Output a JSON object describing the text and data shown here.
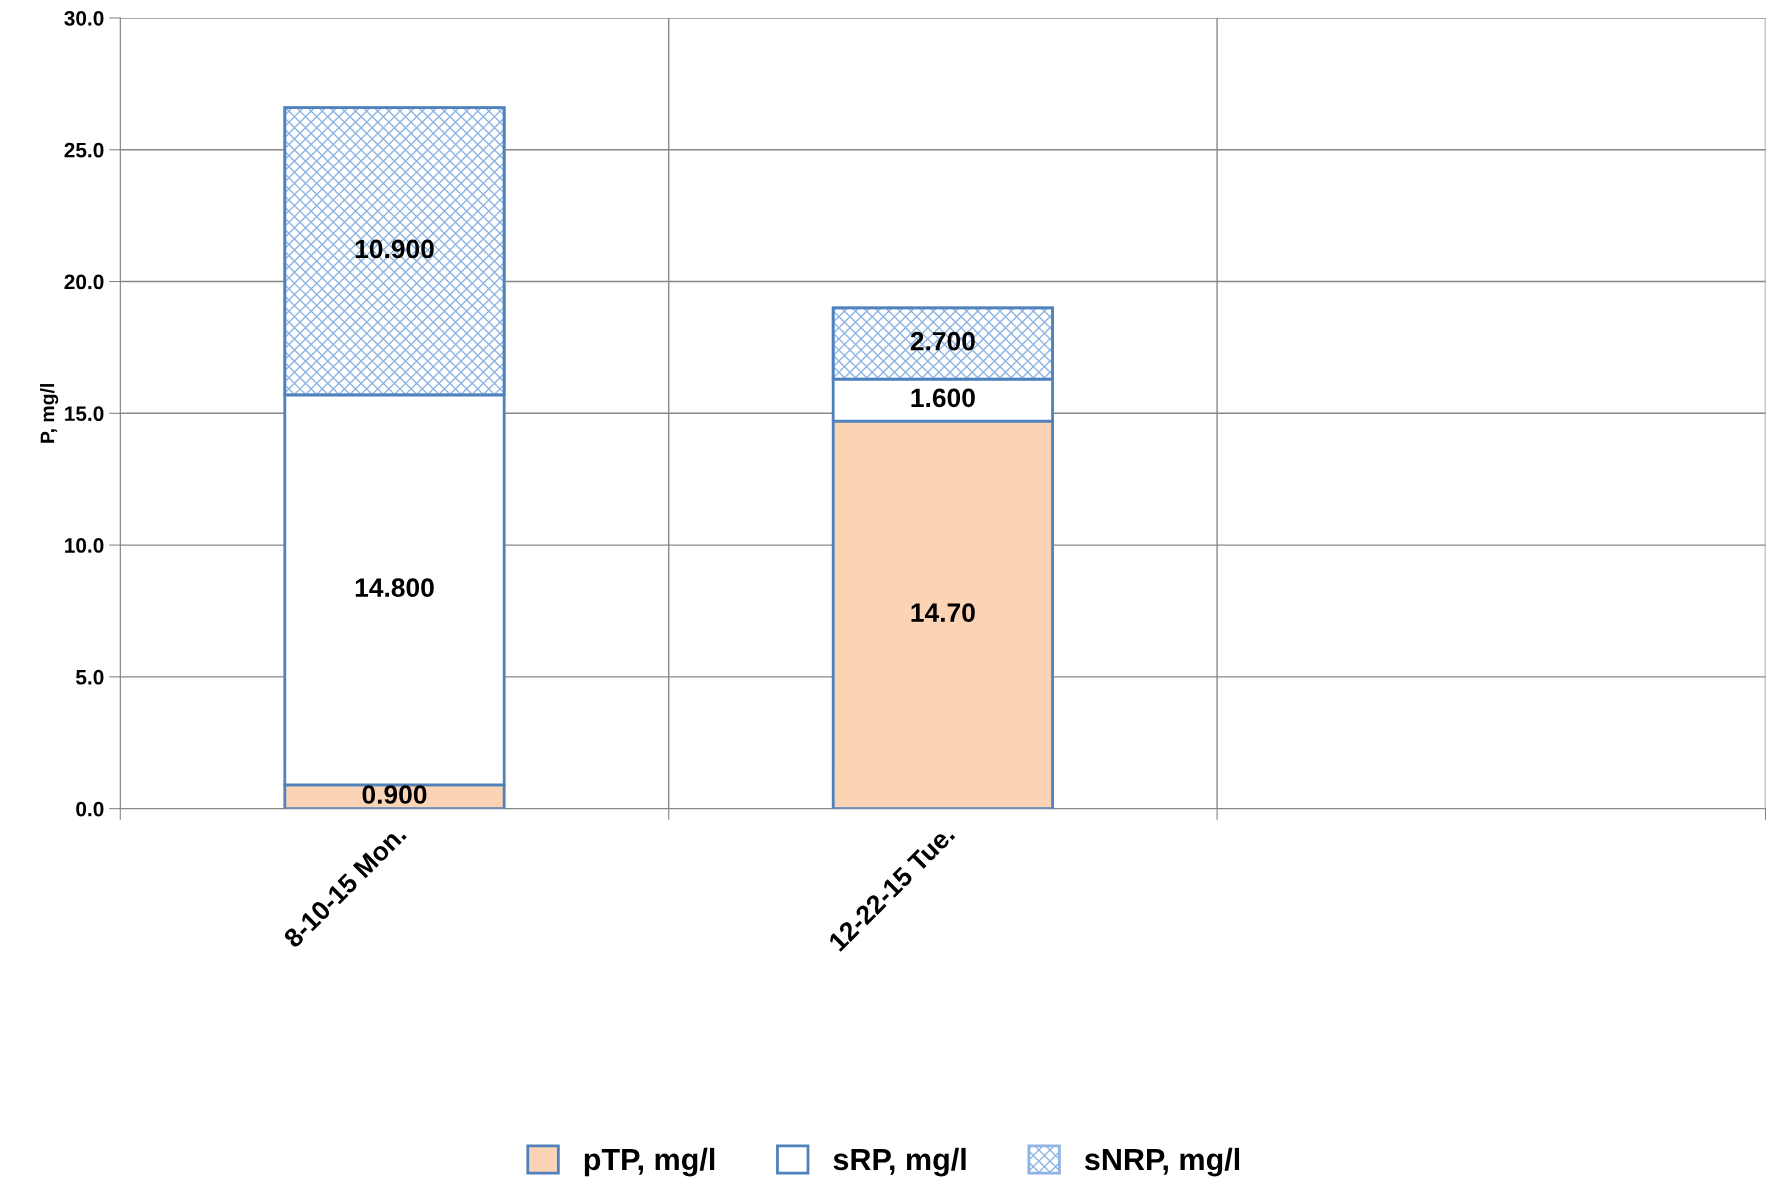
{
  "chart_data": {
    "type": "bar",
    "stacked": true,
    "ylabel": "P, mg/l",
    "categories": [
      "8-10-15 Mon.",
      "12-22-15 Tue.",
      null
    ],
    "series": [
      {
        "name": "pTP, mg/l",
        "color": "#fad4b4",
        "values": [
          0.9,
          14.7,
          null
        ],
        "value_labels": [
          "0.900",
          "14.70",
          null
        ]
      },
      {
        "name": "sRP, mg/l",
        "color": "#ffffff",
        "values": [
          14.8,
          1.6,
          null
        ],
        "value_labels": [
          "14.800",
          "1.600",
          null
        ]
      },
      {
        "name": "sNRP, mg/l",
        "color": "#8db4e2",
        "values": [
          10.9,
          2.7,
          null
        ],
        "value_labels": [
          "10.900",
          "2.700",
          null
        ]
      }
    ],
    "ylim": [
      0,
      30
    ],
    "yticks": [
      {
        "value": 0,
        "label": "0.0"
      },
      {
        "value": 5,
        "label": "5.0"
      },
      {
        "value": 10,
        "label": "10.0"
      },
      {
        "value": 15,
        "label": "15.0"
      },
      {
        "value": 20,
        "label": "20.0"
      },
      {
        "value": 25,
        "label": "25.0"
      },
      {
        "value": 30,
        "label": "30.0"
      }
    ],
    "grid": true,
    "legend": "bottom"
  }
}
